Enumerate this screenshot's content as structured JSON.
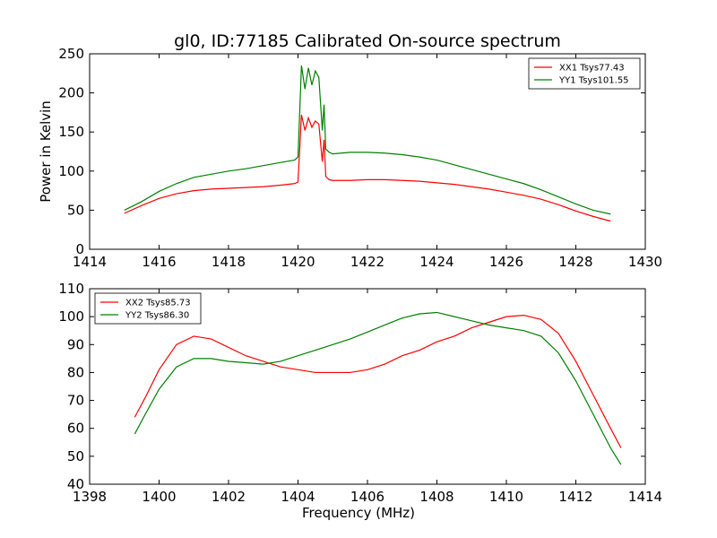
{
  "figure": {
    "title": "gl0, ID:77185 Calibrated On-source spectrum"
  },
  "chart_data": [
    {
      "type": "line",
      "title": "gl0, ID:77185 Calibrated On-source spectrum",
      "xlabel": "",
      "ylabel": "Power in Kelvin",
      "xlim": [
        1414,
        1430
      ],
      "ylim": [
        0,
        250
      ],
      "xticks": [
        1414,
        1416,
        1418,
        1420,
        1422,
        1424,
        1426,
        1428,
        1430
      ],
      "yticks": [
        0,
        50,
        100,
        150,
        200,
        250
      ],
      "grid": false,
      "legend_position": "top-right",
      "series": [
        {
          "name": "XX1 Tsys77.43",
          "color": "#ff0000",
          "x": [
            1415.0,
            1415.5,
            1416.0,
            1416.5,
            1417.0,
            1417.5,
            1418.0,
            1418.5,
            1419.0,
            1419.5,
            1419.9,
            1420.0,
            1420.1,
            1420.2,
            1420.3,
            1420.4,
            1420.5,
            1420.6,
            1420.7,
            1420.75,
            1420.8,
            1420.9,
            1421.0,
            1421.5,
            1422.0,
            1422.5,
            1423.0,
            1423.5,
            1424.0,
            1424.5,
            1425.0,
            1425.5,
            1426.0,
            1426.5,
            1427.0,
            1427.5,
            1428.0,
            1428.5,
            1429.0
          ],
          "y": [
            46,
            56,
            65,
            71,
            75,
            77,
            78,
            79,
            80,
            82,
            84,
            86,
            172,
            152,
            168,
            156,
            164,
            160,
            112,
            140,
            93,
            89,
            88,
            88,
            89,
            89,
            88,
            87,
            85,
            83,
            80,
            77,
            73,
            69,
            64,
            57,
            49,
            42,
            36
          ]
        },
        {
          "name": "YY1 Tsys101.55",
          "color": "#008000",
          "x": [
            1415.0,
            1415.5,
            1416.0,
            1416.5,
            1417.0,
            1417.5,
            1418.0,
            1418.5,
            1419.0,
            1419.5,
            1419.9,
            1420.0,
            1420.1,
            1420.2,
            1420.3,
            1420.4,
            1420.5,
            1420.6,
            1420.7,
            1420.75,
            1420.8,
            1420.9,
            1421.0,
            1421.5,
            1422.0,
            1422.5,
            1423.0,
            1423.5,
            1424.0,
            1424.5,
            1425.0,
            1425.5,
            1426.0,
            1426.5,
            1427.0,
            1427.5,
            1428.0,
            1428.5,
            1429.0
          ],
          "y": [
            50,
            61,
            74,
            84,
            92,
            96,
            100,
            103,
            107,
            111,
            114,
            118,
            235,
            205,
            232,
            210,
            228,
            220,
            152,
            185,
            128,
            124,
            122,
            124,
            124,
            123,
            121,
            118,
            114,
            108,
            102,
            96,
            90,
            84,
            76,
            67,
            58,
            50,
            45
          ]
        }
      ]
    },
    {
      "type": "line",
      "title": "",
      "xlabel": "Frequency (MHz)",
      "ylabel": "",
      "xlim": [
        1398,
        1414
      ],
      "ylim": [
        40,
        110
      ],
      "xticks": [
        1398,
        1400,
        1402,
        1404,
        1406,
        1408,
        1410,
        1412,
        1414
      ],
      "yticks": [
        40,
        50,
        60,
        70,
        80,
        90,
        100,
        110
      ],
      "grid": false,
      "legend_position": "top-left",
      "series": [
        {
          "name": "XX2 Tsys85.73",
          "color": "#ff0000",
          "x": [
            1399.3,
            1399.6,
            1400.0,
            1400.5,
            1401.0,
            1401.5,
            1402.0,
            1402.5,
            1403.0,
            1403.5,
            1404.0,
            1404.5,
            1405.0,
            1405.5,
            1406.0,
            1406.5,
            1407.0,
            1407.5,
            1408.0,
            1408.5,
            1409.0,
            1409.5,
            1410.0,
            1410.5,
            1411.0,
            1411.5,
            1412.0,
            1412.5,
            1413.0,
            1413.3
          ],
          "y": [
            64,
            71,
            81,
            90,
            93,
            92,
            89,
            86,
            84,
            82,
            81,
            80,
            80,
            80,
            81,
            83,
            86,
            88,
            91,
            93,
            96,
            98,
            100,
            100.5,
            99,
            94,
            84,
            72,
            60,
            53
          ]
        },
        {
          "name": "YY2 Tsys86.30",
          "color": "#008000",
          "x": [
            1399.3,
            1399.6,
            1400.0,
            1400.5,
            1401.0,
            1401.5,
            1402.0,
            1402.5,
            1403.0,
            1403.5,
            1404.0,
            1404.5,
            1405.0,
            1405.5,
            1406.0,
            1406.5,
            1407.0,
            1407.5,
            1408.0,
            1408.5,
            1409.0,
            1409.5,
            1410.0,
            1410.5,
            1411.0,
            1411.5,
            1412.0,
            1412.5,
            1413.0,
            1413.3
          ],
          "y": [
            58,
            65,
            74,
            82,
            85,
            85,
            84,
            83.5,
            83,
            84,
            86,
            88,
            90,
            92,
            94.5,
            97,
            99.5,
            101,
            101.5,
            100,
            98.5,
            97,
            96,
            95,
            93,
            87,
            77,
            65,
            53,
            47
          ]
        }
      ]
    }
  ]
}
